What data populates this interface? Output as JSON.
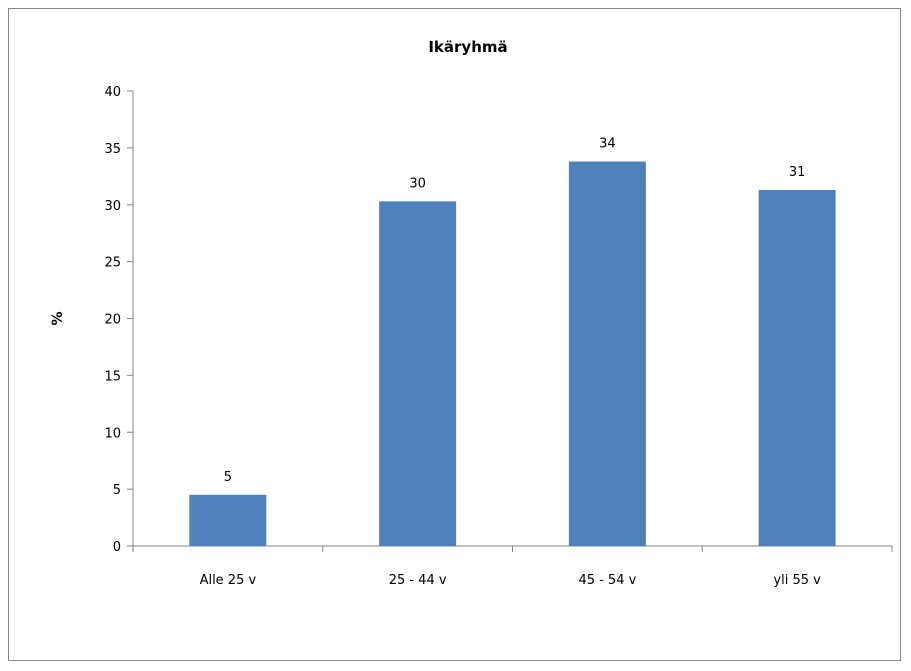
{
  "chart_data": {
    "type": "bar",
    "title": "Ikäryhmä",
    "xlabel": "",
    "ylabel": "%",
    "categories": [
      "Alle 25 v",
      "25 - 44 v",
      "45 - 54 v",
      "yli 55 v"
    ],
    "values": [
      4.5,
      30.3,
      33.8,
      31.3
    ],
    "data_labels": [
      "5",
      "30",
      "34",
      "31"
    ],
    "ylim": [
      0,
      40
    ],
    "yticks": [
      0,
      5,
      10,
      15,
      20,
      25,
      30,
      35,
      40
    ],
    "bar_color": "#4F81BD",
    "grid": false,
    "legend": "none"
  }
}
